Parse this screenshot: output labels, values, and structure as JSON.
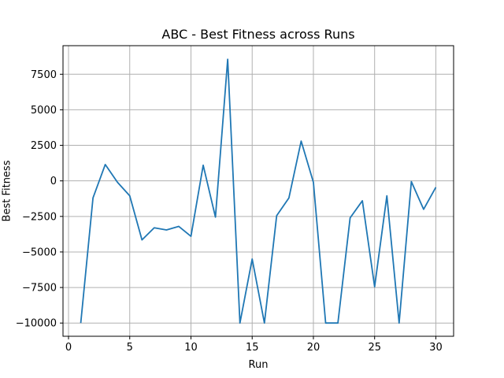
{
  "chart_data": {
    "type": "line",
    "title": "ABC - Best Fitness across Runs",
    "xlabel": "Run",
    "ylabel": "Best Fitness",
    "xlim": [
      -0.45,
      31.45
    ],
    "ylim": [
      -10930,
      9510
    ],
    "xticks": [
      0,
      5,
      10,
      15,
      20,
      25,
      30
    ],
    "yticks": [
      -10000,
      -7500,
      -5000,
      -2500,
      0,
      2500,
      5000,
      7500
    ],
    "grid": true,
    "legend": "none",
    "colors": {
      "series": "#1f77b4",
      "grid": "#b0b0b0",
      "axes": "#000000"
    },
    "series": [
      {
        "x": [
          1,
          2,
          3,
          4,
          5,
          6,
          7,
          8,
          9,
          10,
          11,
          12,
          13,
          14,
          15,
          16,
          17,
          18,
          19,
          20,
          21,
          22,
          23,
          24,
          25,
          26,
          27,
          28,
          29,
          30
        ],
        "values": [
          -10000,
          -1200,
          1150,
          -100,
          -1050,
          -4150,
          -3300,
          -3450,
          -3200,
          -3900,
          1100,
          -2550,
          8550,
          -10000,
          -5500,
          -10000,
          -2450,
          -1200,
          2800,
          -100,
          -10000,
          -10000,
          -2600,
          -1400,
          -7450,
          -1050,
          -10000,
          -50,
          -2000,
          -450
        ]
      }
    ]
  }
}
